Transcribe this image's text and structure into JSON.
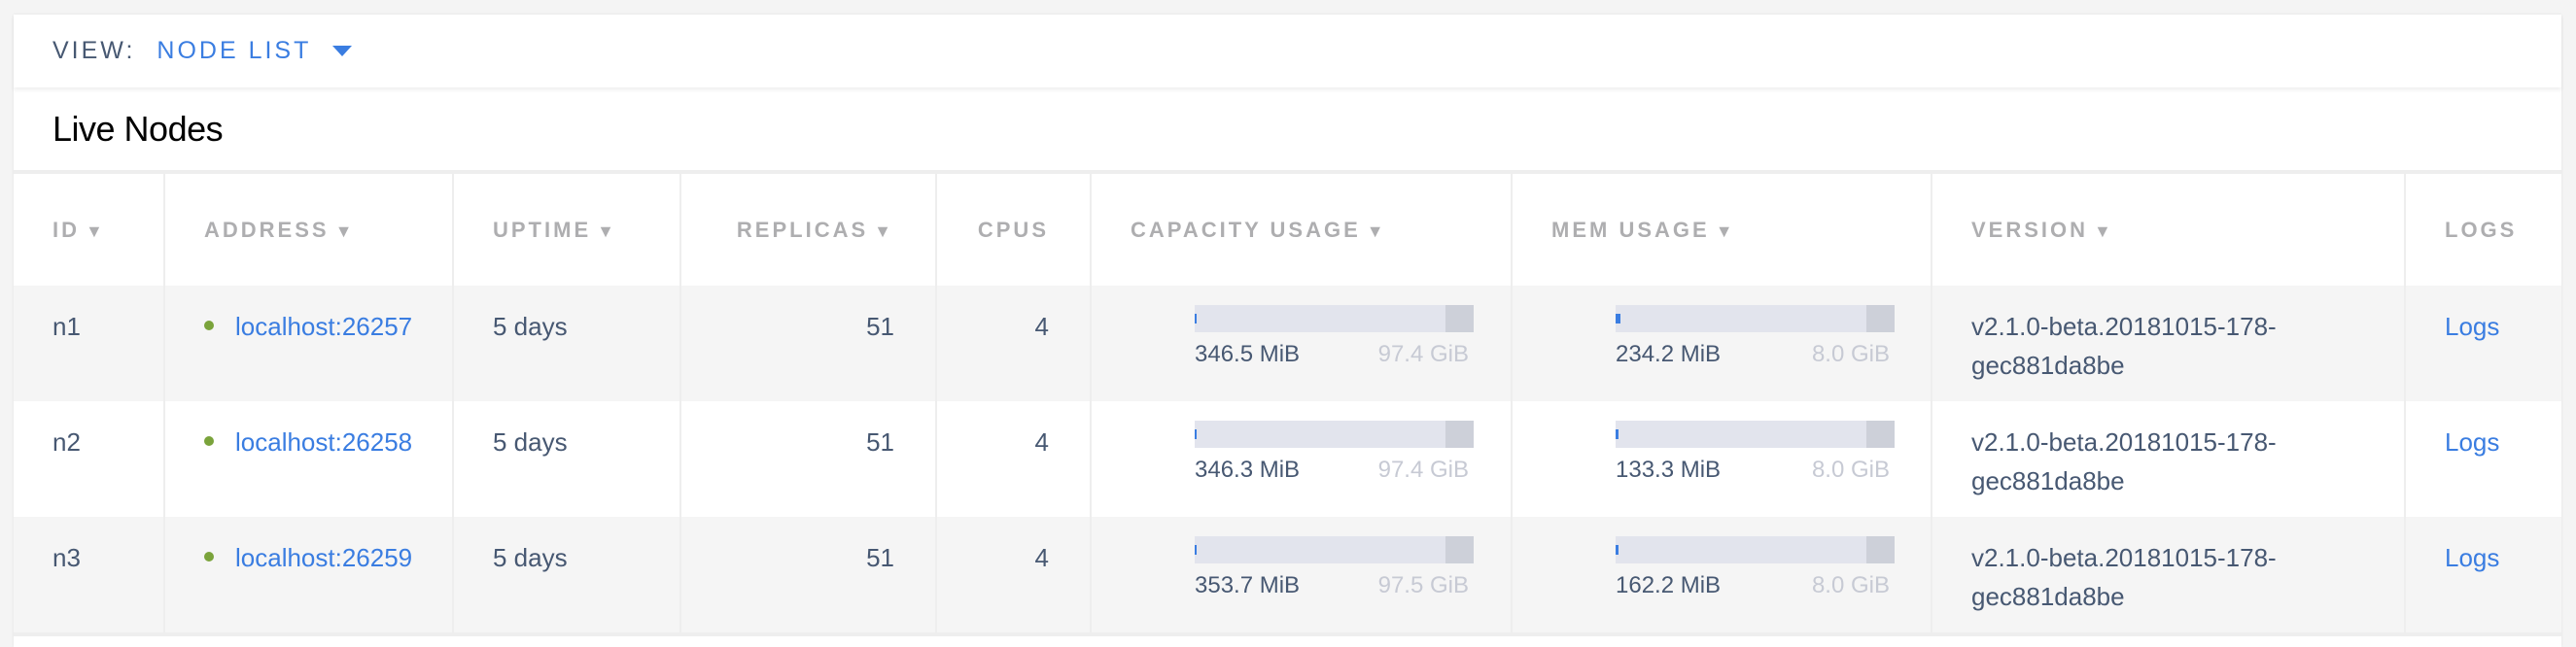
{
  "view": {
    "label": "VIEW:",
    "value": "NODE LIST"
  },
  "section_title": "Live Nodes",
  "columns": [
    {
      "label": "ID",
      "sortable": true
    },
    {
      "label": "ADDRESS",
      "sortable": true
    },
    {
      "label": "UPTIME",
      "sortable": true
    },
    {
      "label": "REPLICAS",
      "sortable": true
    },
    {
      "label": "CPUS",
      "sortable": false
    },
    {
      "label": "CAPACITY USAGE",
      "sortable": true
    },
    {
      "label": "MEM USAGE",
      "sortable": true
    },
    {
      "label": "VERSION",
      "sortable": true
    },
    {
      "label": "LOGS",
      "sortable": false
    }
  ],
  "sort_icon": "▼",
  "rows": [
    {
      "id": "n1",
      "address": "localhost:26257",
      "uptime": "5 days",
      "replicas": "51",
      "cpus": "4",
      "capacity": {
        "percent": "0%",
        "fraction": 0.003,
        "used": "346.5 MiB",
        "total": "97.4 GiB"
      },
      "mem": {
        "percent": "2%",
        "fraction": 0.02,
        "used": "234.2 MiB",
        "total": "8.0 GiB"
      },
      "version": "v2.1.0-beta.20181015-178-gec881da8be",
      "logs": "Logs"
    },
    {
      "id": "n2",
      "address": "localhost:26258",
      "uptime": "5 days",
      "replicas": "51",
      "cpus": "4",
      "capacity": {
        "percent": "0%",
        "fraction": 0.003,
        "used": "346.3 MiB",
        "total": "97.4 GiB"
      },
      "mem": {
        "percent": "1%",
        "fraction": 0.01,
        "used": "133.3 MiB",
        "total": "8.0 GiB"
      },
      "version": "v2.1.0-beta.20181015-178-gec881da8be",
      "logs": "Logs"
    },
    {
      "id": "n3",
      "address": "localhost:26259",
      "uptime": "5 days",
      "replicas": "51",
      "cpus": "4",
      "capacity": {
        "percent": "0%",
        "fraction": 0.003,
        "used": "353.7 MiB",
        "total": "97.5 GiB"
      },
      "mem": {
        "percent": "1%",
        "fraction": 0.01,
        "used": "162.2 MiB",
        "total": "8.0 GiB"
      },
      "version": "v2.1.0-beta.20181015-178-gec881da8be",
      "logs": "Logs"
    }
  ],
  "colors": {
    "accent": "#3a7de1",
    "live": "#7aa33b",
    "bar_track": "#e2e4ed",
    "bar_end": "#cdd0d9"
  }
}
